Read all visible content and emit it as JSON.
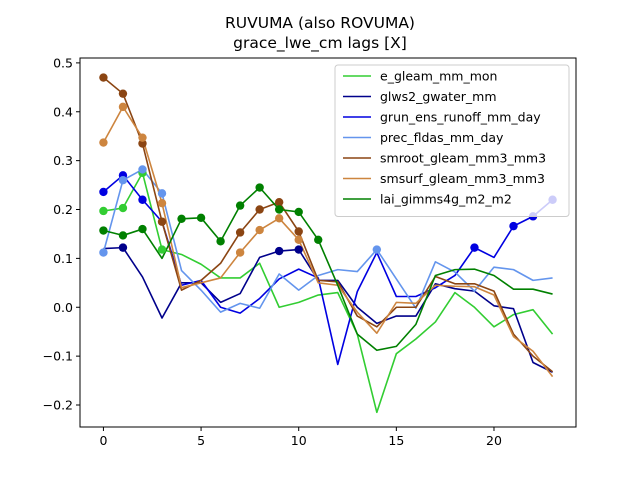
{
  "chart_data": {
    "type": "line",
    "title": "RUVUMA (also ROVUMA)",
    "subtitle": "grace_lwe_cm lags [X]",
    "xlim": [
      -1.2,
      24.2
    ],
    "ylim": [
      -0.245,
      0.51
    ],
    "xticks": [
      0,
      5,
      10,
      15,
      20
    ],
    "yticks": [
      -0.2,
      -0.1,
      0.0,
      0.1,
      0.2,
      0.3,
      0.4,
      0.5
    ],
    "ytick_labels": [
      "−0.2",
      "−0.1",
      "0.0",
      "0.1",
      "0.2",
      "0.3",
      "0.4",
      "0.5"
    ],
    "legend_position": "top-right",
    "x": [
      0,
      1,
      2,
      3,
      4,
      5,
      6,
      7,
      8,
      9,
      10,
      11,
      12,
      13,
      14,
      15,
      16,
      17,
      18,
      19,
      20,
      21,
      22,
      23
    ],
    "series": [
      {
        "name": "e_gleam_mm_mon",
        "color": "#32cd32",
        "values": [
          0.197,
          0.203,
          0.275,
          0.118,
          0.108,
          0.088,
          0.06,
          0.06,
          0.09,
          0.0,
          0.01,
          0.025,
          0.03,
          -0.055,
          -0.215,
          -0.095,
          -0.065,
          -0.03,
          0.03,
          0.0,
          -0.04,
          -0.015,
          -0.005,
          -0.055
        ],
        "markers": [
          0,
          1,
          2,
          3
        ]
      },
      {
        "name": "glws2_gwater_mm",
        "color": "#00008b",
        "values": [
          0.12,
          0.122,
          0.062,
          -0.022,
          0.05,
          0.05,
          0.01,
          0.028,
          0.102,
          0.115,
          0.118,
          0.055,
          0.055,
          0.0,
          -0.033,
          -0.018,
          -0.018,
          0.048,
          0.038,
          0.033,
          0.003,
          -0.003,
          -0.113,
          -0.133
        ],
        "markers": [
          1,
          9,
          10
        ]
      },
      {
        "name": "grun_ens_runoff_mm_day",
        "color": "#0000e1",
        "values": [
          0.236,
          0.27,
          0.22,
          0.175,
          0.045,
          0.055,
          0.0,
          -0.012,
          0.018,
          0.058,
          0.078,
          0.06,
          -0.117,
          0.032,
          0.112,
          0.022,
          0.022,
          0.04,
          0.065,
          0.122,
          0.102,
          0.166,
          0.186,
          0.22
        ],
        "markers": [
          0,
          1,
          2,
          19,
          21,
          22,
          23
        ]
      },
      {
        "name": "prec_fldas_mm_day",
        "color": "#6495ed",
        "values": [
          0.112,
          0.26,
          0.282,
          0.233,
          0.075,
          0.035,
          -0.01,
          0.008,
          -0.002,
          0.068,
          0.035,
          0.065,
          0.077,
          0.073,
          0.118,
          0.058,
          -0.002,
          0.093,
          0.072,
          0.033,
          0.082,
          0.077,
          0.055,
          0.06
        ],
        "markers": [
          0,
          1,
          2,
          3,
          14
        ]
      },
      {
        "name": "smroot_gleam_mm3_mm3",
        "color": "#8b4513",
        "values": [
          0.47,
          0.437,
          0.335,
          0.175,
          0.035,
          0.055,
          0.09,
          0.153,
          0.2,
          0.215,
          0.155,
          0.055,
          0.052,
          -0.018,
          -0.04,
          0.0,
          0.0,
          0.063,
          0.048,
          0.048,
          0.033,
          -0.055,
          -0.1,
          -0.132
        ],
        "markers": [
          0,
          1,
          2,
          3,
          7,
          8,
          9,
          10
        ]
      },
      {
        "name": "smsurf_gleam_mm3_mm3",
        "color": "#cd853f",
        "values": [
          0.337,
          0.41,
          0.347,
          0.213,
          0.04,
          0.05,
          0.06,
          0.112,
          0.158,
          0.182,
          0.138,
          0.05,
          0.045,
          -0.01,
          -0.053,
          0.01,
          0.008,
          0.045,
          0.043,
          0.042,
          0.025,
          -0.06,
          -0.09,
          -0.142
        ],
        "markers": [
          0,
          1,
          2,
          3,
          7,
          8,
          9,
          10
        ]
      },
      {
        "name": "lai_gimms4g_m2_m2",
        "color": "#008000",
        "values": [
          0.157,
          0.147,
          0.16,
          0.1,
          0.181,
          0.183,
          0.135,
          0.208,
          0.245,
          0.2,
          0.195,
          0.138,
          0.045,
          -0.055,
          -0.088,
          -0.08,
          -0.035,
          0.065,
          0.077,
          0.078,
          0.065,
          0.037,
          0.037,
          0.027
        ],
        "markers": [
          0,
          1,
          2,
          4,
          5,
          6,
          7,
          8,
          9,
          10,
          11
        ]
      }
    ]
  }
}
